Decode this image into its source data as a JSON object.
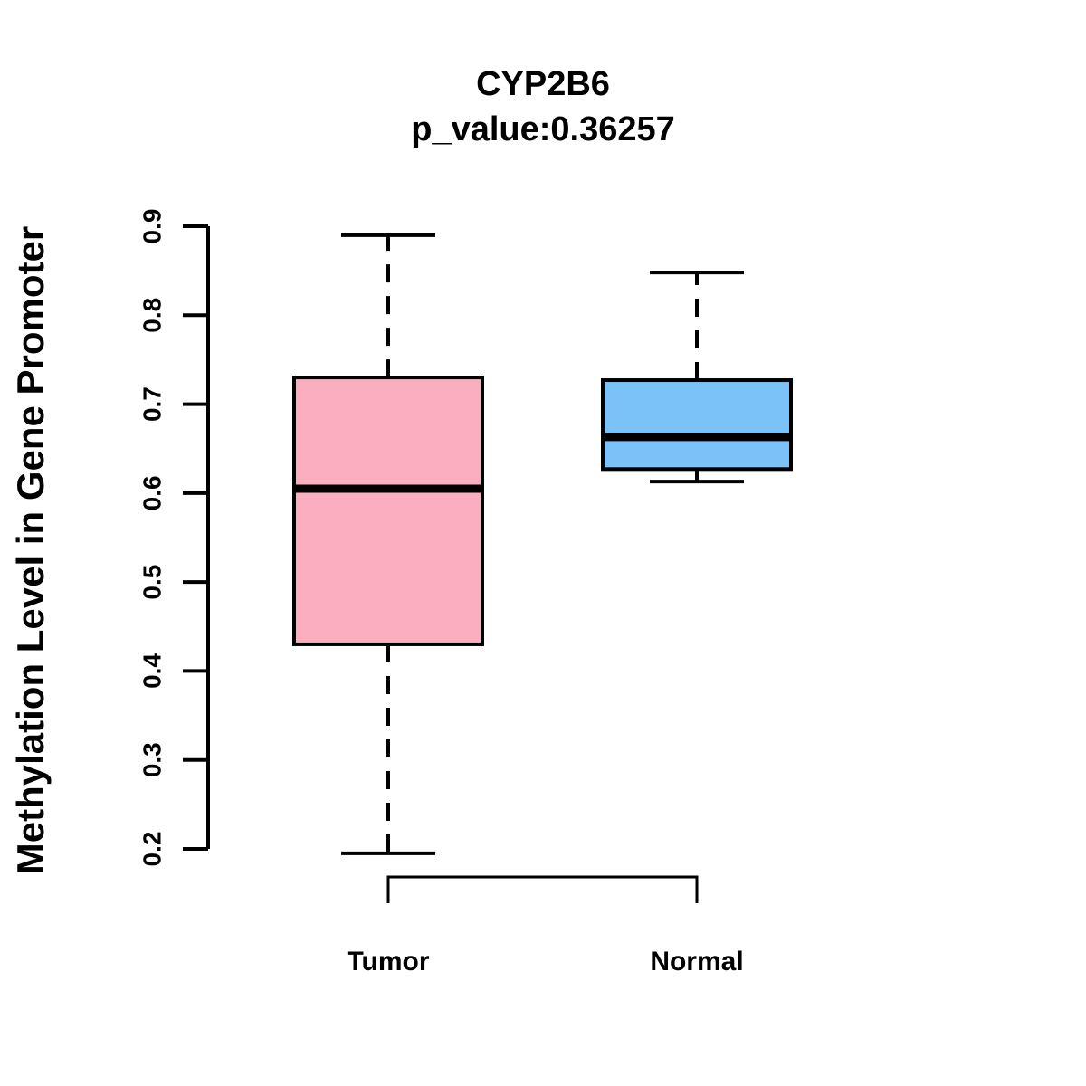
{
  "chart_data": {
    "type": "boxplot",
    "title": "CYP2B6",
    "subtitle": "p_value:0.36257",
    "ylabel": "Methylation Level in Gene Promoter",
    "xlabel": "",
    "ylim": [
      0.2,
      0.9
    ],
    "yticks": [
      0.2,
      0.3,
      0.4,
      0.5,
      0.6,
      0.7,
      0.8,
      0.9
    ],
    "grid": "off",
    "categories": [
      "Tumor",
      "Normal"
    ],
    "series": [
      {
        "name": "Tumor",
        "label": "Tumor",
        "color": "#FCAEC1",
        "whisker_low": 0.195,
        "q1": 0.43,
        "median": 0.605,
        "q3": 0.73,
        "whisker_high": 0.89
      },
      {
        "name": "Normal",
        "label": "Normal",
        "color": "#7AC2F8",
        "whisker_low": 0.613,
        "q1": 0.627,
        "median": 0.663,
        "q3": 0.727,
        "whisker_high": 0.848
      }
    ],
    "stroke_color": "#000000"
  }
}
